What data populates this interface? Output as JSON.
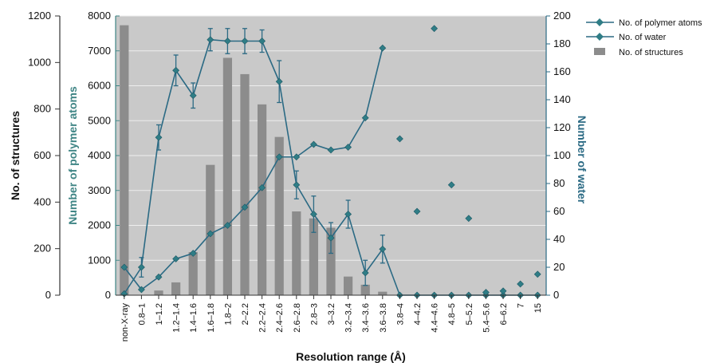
{
  "chart_data": {
    "type": "bar",
    "xlabel": "Resolution range (Å)",
    "categories": [
      "non-X-ray",
      "0.8–1",
      "1–1.2",
      "1.2–1.4",
      "1.4–1.6",
      "1.6–1.8",
      "1.8–2",
      "2–2.2",
      "2.2–2.4",
      "2.4–2.6",
      "2.6–2.8",
      "2.8–3",
      "3–3.2",
      "3.2–3.4",
      "3.4–3.6",
      "3.6–3.8",
      "3.8–4",
      "4–4.2",
      "4.4–4.6",
      "4.8–5",
      "5–5.2",
      "5.4–5.6",
      "6–6.2",
      "7",
      "15"
    ],
    "axes": {
      "left": {
        "label": "No. of structures",
        "min": 0,
        "max": 1200,
        "ticks": [
          0,
          200,
          400,
          600,
          800,
          1000,
          1200
        ]
      },
      "center": {
        "label": "Number of polymer atoms",
        "min": 0,
        "max": 8000,
        "ticks": [
          0,
          1000,
          2000,
          3000,
          4000,
          5000,
          6000,
          7000,
          8000
        ]
      },
      "right": {
        "label": "Number of water",
        "min": 0,
        "max": 200,
        "ticks": [
          0,
          20,
          40,
          60,
          80,
          100,
          120,
          140,
          160,
          180,
          200
        ]
      }
    },
    "series": [
      {
        "name": "No. of polymer atoms",
        "kind": "line-markers",
        "axis": "right",
        "line_until_index": 15,
        "values": [
          20,
          4,
          13,
          26,
          30,
          44,
          50,
          63,
          77,
          99,
          99,
          108,
          104,
          106,
          127,
          177,
          112,
          60,
          191,
          79,
          55,
          2,
          3,
          8,
          15
        ]
      },
      {
        "name": "No. of water",
        "kind": "line-markers-errorbars",
        "axis": "right",
        "values": [
          1,
          20,
          113,
          161,
          143,
          183,
          182,
          182,
          182,
          153,
          79,
          58,
          41,
          58,
          16,
          33,
          0,
          0,
          0,
          0,
          0,
          0,
          0,
          0,
          0
        ],
        "errors": [
          0,
          7,
          9,
          11,
          9,
          8,
          9,
          9,
          8,
          15,
          10,
          13,
          11,
          10,
          9,
          10,
          0,
          0,
          0,
          0,
          0,
          0,
          0,
          0,
          0
        ]
      },
      {
        "name": "No. of structures",
        "kind": "bar",
        "axis": "left",
        "values": [
          1160,
          0,
          20,
          55,
          185,
          560,
          1020,
          950,
          820,
          680,
          360,
          330,
          290,
          80,
          45,
          15,
          0,
          0,
          0,
          0,
          0,
          0,
          0,
          0,
          0
        ]
      }
    ],
    "colors": {
      "plot_bg": "#c9c9c9",
      "grid": "#eeeeee",
      "bar": "#8c8c8c",
      "line": "#2b6a84",
      "marker": "#2f7d86",
      "center_axis": "#3f8585",
      "right_axis": "#2b6a84"
    },
    "legend_position": "top-right"
  }
}
